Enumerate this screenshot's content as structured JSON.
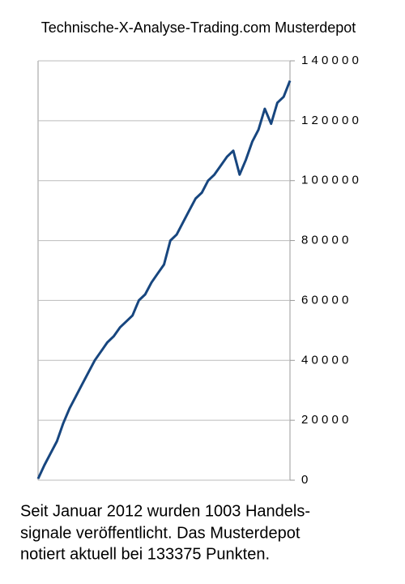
{
  "chart_data": {
    "type": "line",
    "title": "Technische-X-Analyse-Trading.com Musterdepot",
    "values": [
      500,
      5000,
      9000,
      13000,
      19000,
      24000,
      28000,
      32000,
      36000,
      40000,
      43000,
      46000,
      48000,
      51000,
      53000,
      55000,
      60000,
      62000,
      66000,
      69000,
      72000,
      80000,
      82000,
      86000,
      90000,
      94000,
      96000,
      100000,
      102000,
      105000,
      108000,
      110000,
      102000,
      107000,
      113000,
      117000,
      124000,
      119000,
      126000,
      128000,
      133375
    ],
    "color": "#17467f",
    "ylim": [
      0,
      140000
    ],
    "yticks": [
      0,
      {
        "value": 20000,
        "label": "2 0 0 0 0"
      },
      {
        "value": 40000,
        "label": "4 0 0 0 0"
      },
      {
        "value": 60000,
        "label": "6 0 0 0 0"
      },
      {
        "value": 80000,
        "label": "8 0 0 0 0"
      },
      {
        "value": 100000,
        "label": "1 0 0 0 0 0"
      },
      {
        "value": 120000,
        "label": "1 2 0 0 0 0"
      },
      {
        "value": 140000,
        "label": "1 4 0 0 0 0"
      }
    ],
    "grid": true
  },
  "caption": [
    "Seit Januar 2012 wurden 1003 Handels-",
    "signale veröffentlicht. Das  Musterdepot",
    "notiert aktuell bei 133375 Punkten."
  ]
}
